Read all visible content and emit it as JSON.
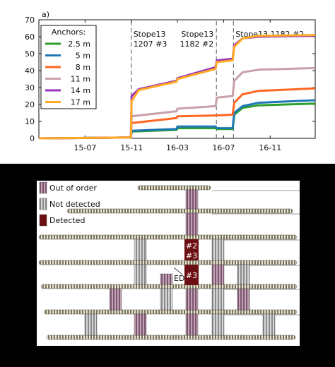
{
  "chart_data": [
    {
      "type": "line",
      "panel_label": "a)",
      "xlabel": "",
      "ylabel": "",
      "ylim": [
        0,
        70
      ],
      "yticks": [
        0,
        10,
        20,
        30,
        40,
        50,
        60,
        70
      ],
      "xlim": [
        "2015-03-01",
        "2017-02-28"
      ],
      "xticks": [
        {
          "date": "2015-07-01",
          "label": "15-07"
        },
        {
          "date": "2015-11-01",
          "label": "15-11"
        },
        {
          "date": "2016-03-01",
          "label": "16-03"
        },
        {
          "date": "2016-07-01",
          "label": "16-07"
        },
        {
          "date": "2016-11-01",
          "label": "16-11"
        }
      ],
      "grid": false,
      "legend": {
        "title": "Anchors:",
        "placement": "top-left",
        "entries": [
          "2.5 m",
          "5 m",
          "8 m",
          "11 m",
          "14 m",
          "17 m"
        ]
      },
      "annotations": [
        {
          "date": "2015-10-31",
          "lines": [
            "Stope13",
            "1207 #3"
          ]
        },
        {
          "date": "2016-06-12",
          "lines": [
            "Stope13",
            "1182 #2"
          ]
        },
        {
          "date": "2016-07-27",
          "lines": [
            "Stope13 1182 #2"
          ]
        }
      ],
      "series": [
        {
          "name": "2.5 m",
          "color": "#2ca02c",
          "x": [
            "2015-03-01",
            "2015-10-30",
            "2015-11-01",
            "2016-02-28",
            "2016-03-01",
            "2016-06-10",
            "2016-06-13",
            "2016-07-25",
            "2016-07-29",
            "2016-08-20",
            "2016-10-01",
            "2017-02-28"
          ],
          "y": [
            0,
            0.5,
            4,
            5,
            6,
            6,
            5.5,
            5.5,
            14,
            18,
            19.5,
            20.5
          ]
        },
        {
          "name": "5 m",
          "color": "#1f77b4",
          "x": [
            "2015-03-01",
            "2015-10-30",
            "2015-11-01",
            "2016-02-28",
            "2016-03-01",
            "2016-06-10",
            "2016-06-13",
            "2016-07-25",
            "2016-07-29",
            "2016-08-20",
            "2016-10-01",
            "2017-02-28"
          ],
          "y": [
            0,
            0.5,
            4.5,
            5.5,
            7,
            7,
            6,
            6,
            15,
            19,
            21,
            22.5
          ]
        },
        {
          "name": "8 m",
          "color": "#ff6622",
          "x": [
            "2015-03-01",
            "2015-10-30",
            "2015-11-01",
            "2016-02-28",
            "2016-03-01",
            "2016-06-10",
            "2016-06-13",
            "2016-07-25",
            "2016-07-29",
            "2016-08-20",
            "2016-10-01",
            "2017-02-28"
          ],
          "y": [
            0,
            0.5,
            9,
            12,
            13,
            13.5,
            13.5,
            14,
            21,
            26,
            28,
            29.5
          ]
        },
        {
          "name": "11 m",
          "color": "#c8a0a8",
          "x": [
            "2015-03-01",
            "2015-10-30",
            "2015-11-01",
            "2016-02-28",
            "2016-03-01",
            "2016-06-10",
            "2016-06-13",
            "2016-07-25",
            "2016-07-29",
            "2016-08-20",
            "2016-10-01",
            "2017-02-28"
          ],
          "y": [
            0,
            0.5,
            13,
            16,
            17.5,
            19,
            24,
            25,
            34,
            39,
            40.5,
            41.5
          ]
        },
        {
          "name": "14 m",
          "color": "#9933bb",
          "x": [
            "2015-03-01",
            "2015-10-30",
            "2015-11-01",
            "2015-11-20",
            "2016-02-28",
            "2016-03-01",
            "2016-06-10",
            "2016-06-13",
            "2016-07-25",
            "2016-07-29",
            "2016-08-20",
            "2016-10-01",
            "2017-02-28"
          ],
          "y": [
            0,
            0.5,
            25,
            29,
            34,
            35.5,
            42,
            46,
            47,
            55,
            59,
            60,
            60.5
          ]
        },
        {
          "name": "17 m",
          "color": "#ffaa22",
          "x": [
            "2015-03-01",
            "2015-10-30",
            "2015-11-01",
            "2015-11-20",
            "2016-02-28",
            "2016-03-01",
            "2016-06-10",
            "2016-06-13",
            "2016-07-25",
            "2016-07-29",
            "2016-08-20",
            "2016-10-01",
            "2017-02-28"
          ],
          "y": [
            0,
            0.5,
            22,
            28.5,
            33.5,
            35,
            41,
            45,
            46,
            54,
            59,
            60.5,
            61
          ]
        }
      ]
    }
  ],
  "panel_b": {
    "legend": [
      {
        "label": "Out of order",
        "color": "#9c6f86"
      },
      {
        "label": "Not detected",
        "color": "#a0a0a0"
      },
      {
        "label": "Detected",
        "color": "#6b0f12"
      }
    ],
    "labels": {
      "num2": "#2",
      "num3a": "#3",
      "num3b": "#3",
      "ed": "ED"
    }
  }
}
